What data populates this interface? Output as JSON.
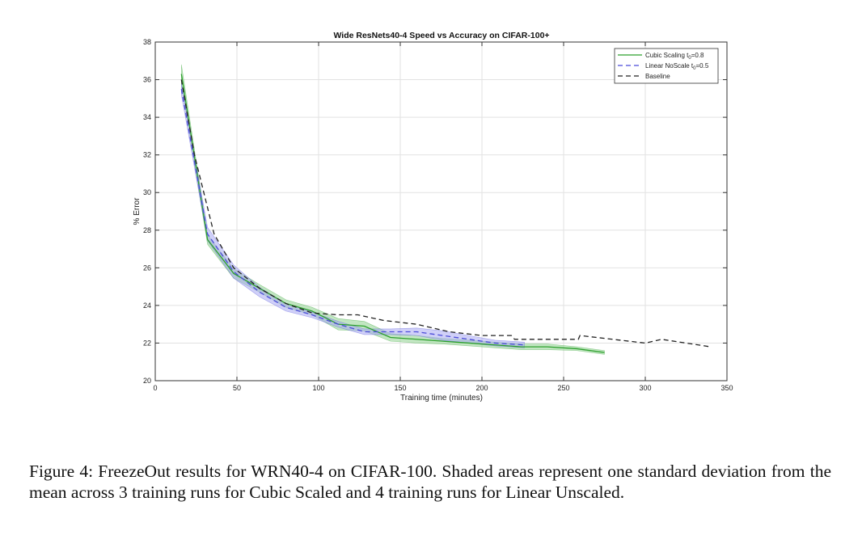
{
  "caption": "Figure 4: FreezeOut results for WRN40-4 on CIFAR-100. Shaded areas represent one standard deviation from the mean across 3 training runs for Cubic Scaled and 4 training runs for Linear Unscaled.",
  "chart_data": {
    "type": "line",
    "title": "Wide ResNets40-4 Speed vs Accuracy on CIFAR-100+",
    "xlabel": "Training time (minutes)",
    "ylabel": "% Error",
    "xlim": [
      0,
      350
    ],
    "ylim": [
      20,
      38
    ],
    "xticks": [
      0,
      50,
      100,
      150,
      200,
      250,
      300,
      350
    ],
    "yticks": [
      20,
      22,
      24,
      26,
      28,
      30,
      32,
      34,
      36,
      38
    ],
    "grid": true,
    "legend_position": "top-right",
    "series": [
      {
        "name": "Cubic Scaling t",
        "name_subscript": "0",
        "name_suffix": "=0.8",
        "color": "#2ca02c",
        "band_color": "#8fd18f",
        "style": "solid",
        "x": [
          16,
          32,
          48,
          64,
          80,
          96,
          112,
          128,
          144,
          160,
          176,
          192,
          208,
          224,
          240,
          258,
          275
        ],
        "y": [
          36.3,
          27.5,
          25.7,
          24.9,
          24.1,
          23.7,
          23.0,
          22.9,
          22.3,
          22.2,
          22.1,
          22.0,
          21.9,
          21.8,
          21.8,
          21.7,
          21.5
        ],
        "std": [
          0.5,
          0.25,
          0.25,
          0.2,
          0.2,
          0.2,
          0.3,
          0.25,
          0.2,
          0.2,
          0.15,
          0.15,
          0.15,
          0.15,
          0.15,
          0.1,
          0.1
        ]
      },
      {
        "name": "Linear NoScale t",
        "name_subscript": "0",
        "name_suffix": "=0.5",
        "color": "#4b4bd9",
        "band_color": "#a9a9f2",
        "style": "dashed",
        "x": [
          16,
          32,
          48,
          64,
          80,
          96,
          112,
          128,
          144,
          160,
          176,
          192,
          208,
          226
        ],
        "y": [
          35.5,
          27.8,
          25.8,
          24.7,
          23.9,
          23.5,
          23.0,
          22.6,
          22.6,
          22.6,
          22.4,
          22.2,
          22.0,
          21.9
        ],
        "std": [
          0.3,
          0.35,
          0.35,
          0.25,
          0.2,
          0.15,
          0.15,
          0.15,
          0.15,
          0.2,
          0.25,
          0.2,
          0.15,
          0.15
        ]
      },
      {
        "name": "Baseline",
        "color": "#222222",
        "style": "dashed",
        "x": [
          16,
          24,
          36,
          48,
          64,
          80,
          96,
          112,
          124,
          140,
          160,
          180,
          200,
          218,
          220,
          240,
          259,
          260,
          280,
          300,
          310,
          340
        ],
        "y": [
          36.0,
          32.0,
          27.8,
          26.0,
          24.9,
          24.1,
          23.6,
          23.5,
          23.5,
          23.2,
          23.0,
          22.6,
          22.4,
          22.4,
          22.2,
          22.2,
          22.2,
          22.4,
          22.2,
          22.0,
          22.2,
          21.8
        ]
      }
    ]
  }
}
